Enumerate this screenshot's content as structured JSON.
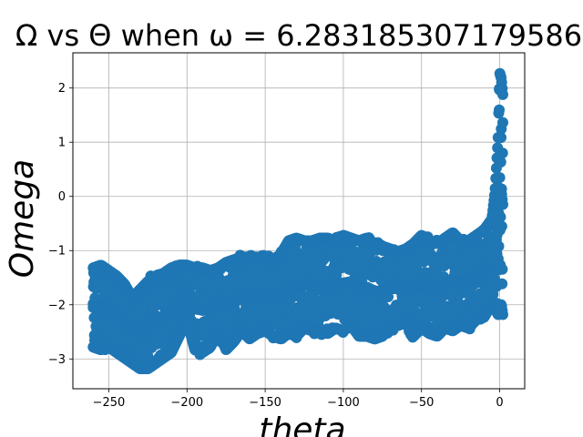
{
  "chart_data": {
    "type": "scatter",
    "title": "Ω vs Θ when ω = 6.283185307179586",
    "xlabel": "theta",
    "ylabel": "Omega",
    "xlim": [
      -273,
      16
    ],
    "ylim": [
      -3.55,
      2.65
    ],
    "grid": true,
    "color": "#1f77b4",
    "xticks": [
      -250,
      -200,
      -150,
      -100,
      -50,
      0
    ],
    "xtick_labels": [
      "−250",
      "−200",
      "−150",
      "−100",
      "−50",
      "0"
    ],
    "yticks": [
      -3,
      -2,
      -1,
      0,
      1,
      2
    ],
    "ytick_labels": [
      "−3",
      "−2",
      "−1",
      "0",
      "1",
      "2"
    ],
    "series": [
      {
        "name": "",
        "envelope": {
          "x": [
            -260,
            -255,
            -250,
            -245,
            -240,
            -235,
            -230,
            -225,
            -220,
            -215,
            -210,
            -205,
            -200,
            -195,
            -190,
            -185,
            -180,
            -175,
            -170,
            -165,
            -160,
            -155,
            -150,
            -145,
            -140,
            -135,
            -130,
            -125,
            -120,
            -115,
            -110,
            -105,
            -100,
            -95,
            -90,
            -85,
            -80,
            -75,
            -70,
            -65,
            -60,
            -55,
            -50,
            -45,
            -40,
            -35,
            -30,
            -25,
            -20,
            -15,
            -10,
            -5,
            -3,
            -1,
            0,
            1,
            2
          ],
          "upper": [
            -1.2,
            -1.15,
            -1.25,
            -1.35,
            -1.5,
            -1.75,
            -1.6,
            -1.45,
            -1.35,
            -1.3,
            -1.2,
            -1.15,
            -1.15,
            -1.2,
            -1.2,
            -1.25,
            -1.2,
            -1.1,
            -1.05,
            -1.0,
            -1.0,
            -1.0,
            -1.05,
            -1.05,
            -0.95,
            -0.7,
            -0.65,
            -0.7,
            -0.7,
            -0.65,
            -0.65,
            -0.7,
            -0.6,
            -0.65,
            -0.7,
            -0.65,
            -0.75,
            -0.8,
            -0.85,
            -0.9,
            -0.85,
            -0.75,
            -0.6,
            -0.7,
            -0.75,
            -0.65,
            -0.55,
            -0.7,
            -0.7,
            -0.6,
            -0.5,
            -0.3,
            0.2,
            1.2,
            2.4,
            2.3,
            2.0
          ],
          "lower": [
            -2.9,
            -2.95,
            -2.9,
            -3.0,
            -3.1,
            -3.2,
            -3.3,
            -3.3,
            -3.2,
            -3.1,
            -3.0,
            -2.7,
            -2.4,
            -2.95,
            -3.0,
            -2.9,
            -2.6,
            -2.95,
            -2.8,
            -2.6,
            -2.75,
            -2.65,
            -2.6,
            -2.7,
            -2.75,
            -2.65,
            -2.7,
            -2.55,
            -2.6,
            -2.6,
            -2.65,
            -2.55,
            -2.6,
            -2.5,
            -2.7,
            -2.7,
            -2.75,
            -2.7,
            -2.55,
            -2.5,
            -2.45,
            -2.7,
            -2.55,
            -2.65,
            -2.7,
            -2.55,
            -2.6,
            -2.5,
            -2.55,
            -2.4,
            -2.35,
            -2.1,
            -2.2,
            -2.3,
            -2.25,
            -2.1,
            -2.3
          ]
        }
      }
    ]
  }
}
